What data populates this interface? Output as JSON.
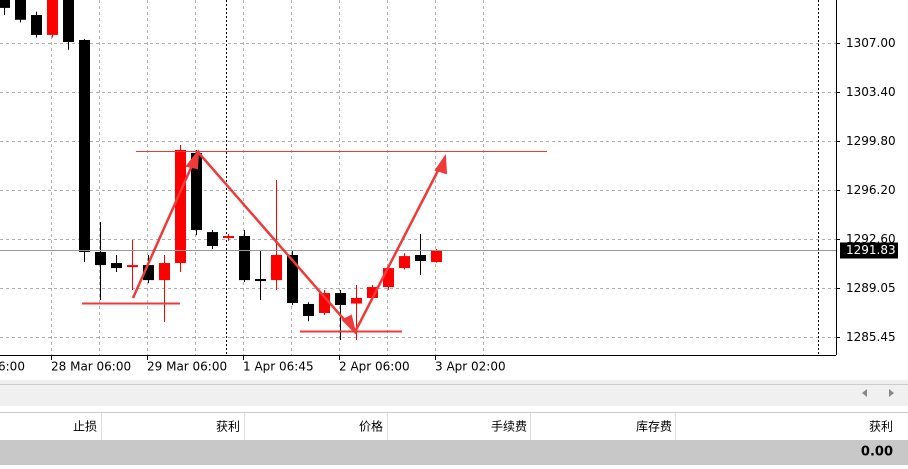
{
  "chart_data": {
    "type": "candlestick",
    "ylim": [
      1284.13,
      1310.15
    ],
    "yticks": [
      {
        "value": 1307.0,
        "label": "1307.00"
      },
      {
        "value": 1303.4,
        "label": "1303.40"
      },
      {
        "value": 1299.8,
        "label": "1299.80"
      },
      {
        "value": 1296.2,
        "label": "1296.20"
      },
      {
        "value": 1292.6,
        "label": "1292.60"
      },
      1289.05,
      1285.45
    ],
    "x_edge_label": "6:00",
    "categories": [
      null,
      null,
      null,
      "28 Mar 06:00",
      null,
      null,
      null,
      null,
      null,
      "29 Mar 06:00",
      null,
      null,
      null,
      null,
      null,
      "1 Apr 06:45",
      null,
      null,
      null,
      null,
      null,
      "2 Apr 06:00",
      null,
      null,
      null,
      null,
      null,
      "3 Apr 02:00"
    ],
    "open": [
      1310.5,
      1310.5,
      1309.05,
      1307.59,
      1310.5,
      1307.22,
      1291.68,
      1290.87,
      1290.58,
      1290.72,
      1289.62,
      1290.87,
      1298.94,
      1293.14,
      1292.7,
      1292.85,
      1289.7,
      1289.62,
      1291.46,
      1287.87,
      1287.21,
      1288.67,
      1287.9,
      1288.31,
      1289.11,
      1290.5,
      1291.46,
      1290.94
    ],
    "high": [
      1311.0,
      1311.0,
      1309.3,
      1311.0,
      1311.0,
      1307.3,
      1293.88,
      1291.46,
      1292.56,
      1291.46,
      1291.46,
      1299.52,
      1299.16,
      1293.3,
      1293.0,
      1293.29,
      1291.82,
      1296.96,
      1291.8,
      1288.0,
      1288.89,
      1288.89,
      1289.26,
      1289.26,
      1290.72,
      1291.6,
      1293.0,
      1291.9
    ],
    "low": [
      1309.05,
      1308.5,
      1307.4,
      1307.4,
      1306.5,
      1290.94,
      1288.16,
      1290.21,
      1288.89,
      1289.4,
      1286.55,
      1290.21,
      1292.92,
      1291.9,
      1292.5,
      1289.48,
      1288.16,
      1288.89,
      1287.8,
      1286.6,
      1287.06,
      1285.23,
      1285.23,
      1288.2,
      1288.9,
      1290.4,
      1289.99,
      1290.9
    ],
    "close": [
      1309.57,
      1308.7,
      1307.59,
      1310.5,
      1307.07,
      1291.68,
      1290.72,
      1290.5,
      1290.72,
      1289.62,
      1290.87,
      1299.16,
      1293.29,
      1292.12,
      1292.85,
      1289.62,
      1289.55,
      1291.46,
      1287.94,
      1286.99,
      1288.67,
      1287.79,
      1288.31,
      1289.11,
      1290.5,
      1291.38,
      1291.02,
      1291.82
    ],
    "up_color": "#ff0000",
    "down_color": "#000000",
    "current_price": 1291.83,
    "grid": true
  },
  "terminal": {
    "columns": [
      "止损",
      "获利",
      "价格",
      "手续费",
      "库存费",
      "获利"
    ],
    "total": "0.00"
  }
}
